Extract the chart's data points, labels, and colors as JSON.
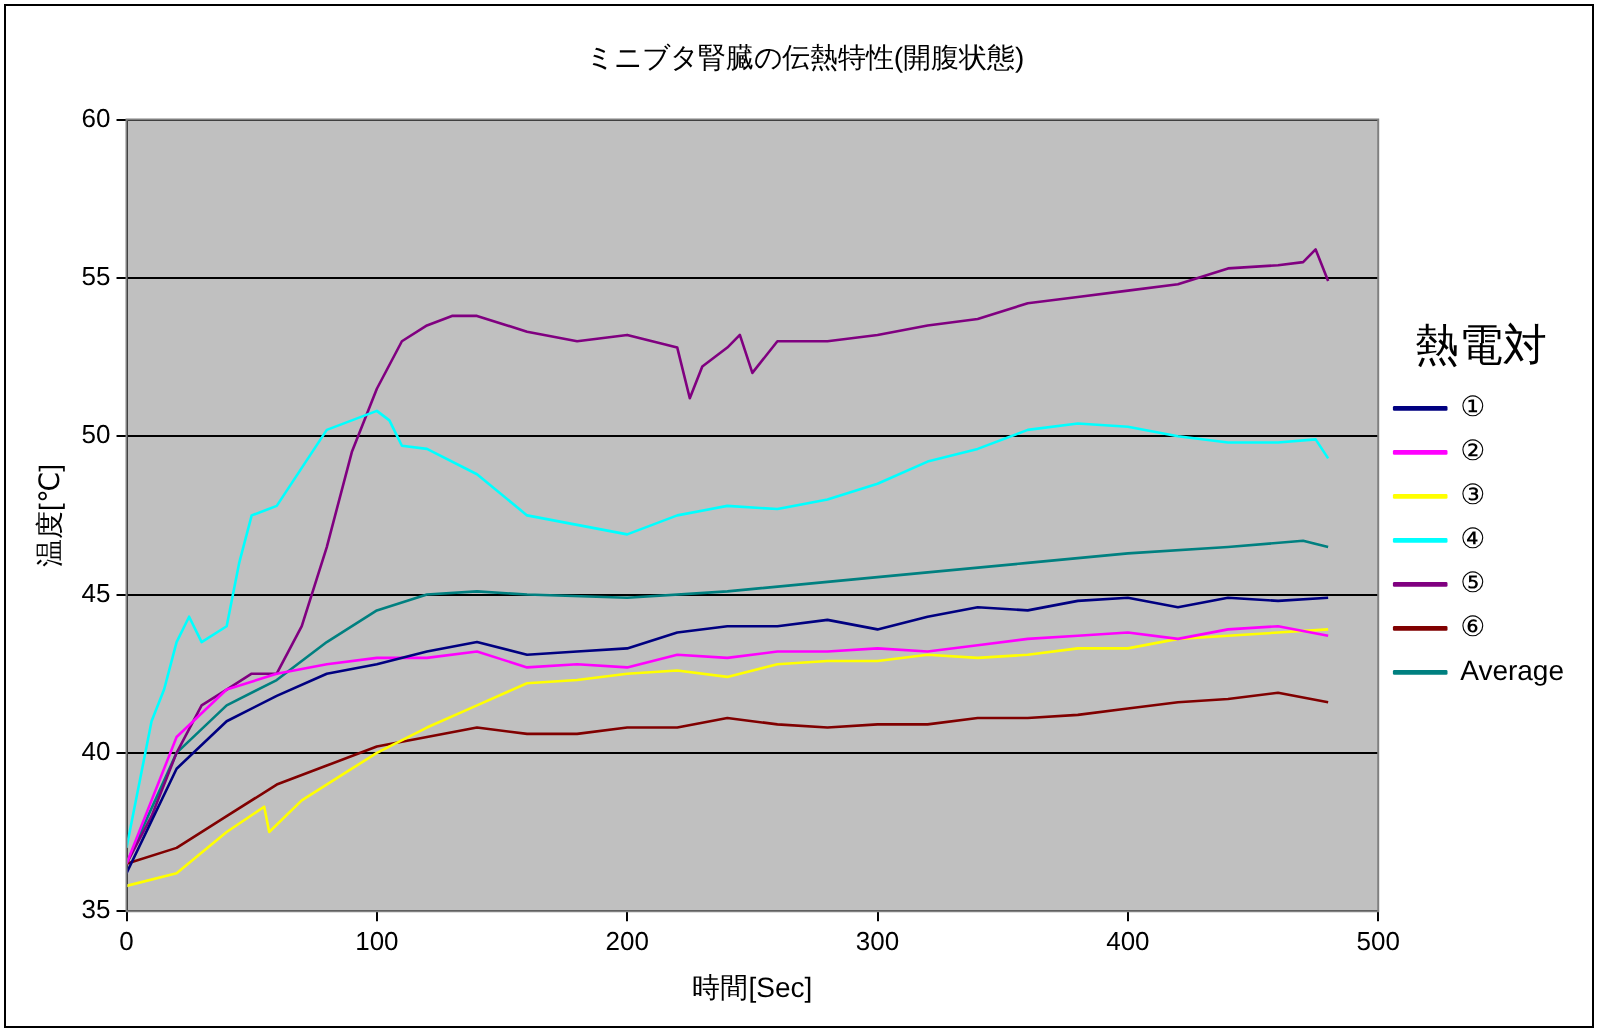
{
  "chart_data": {
    "type": "line",
    "title": "ミニブタ腎臓の伝熱特性(開腹状態)",
    "xlabel": "時間[Sec]",
    "ylabel": "温度[℃]",
    "legend_title": "熱電対",
    "legend": "right",
    "grid": "y",
    "marker": "none",
    "line_style": "solid",
    "xlim": [
      0,
      500
    ],
    "xticks": [
      0,
      100,
      200,
      300,
      400,
      500
    ],
    "ylim": [
      35,
      60
    ],
    "yticks": [
      35,
      40,
      45,
      50,
      55,
      60
    ],
    "series": [
      {
        "name": "①",
        "color": "#000080",
        "x": [
          0,
          20,
          40,
          60,
          80,
          100,
          120,
          140,
          160,
          180,
          200,
          220,
          240,
          260,
          280,
          300,
          320,
          340,
          360,
          380,
          400,
          420,
          440,
          460,
          480
        ],
        "values": [
          36.2,
          39.5,
          41,
          41.8,
          42.5,
          42.8,
          43.2,
          43.5,
          43.1,
          43.2,
          43.3,
          43.8,
          44,
          44,
          44.2,
          43.9,
          44.3,
          44.6,
          44.5,
          44.8,
          44.9,
          44.6,
          44.9,
          44.8,
          44.9
        ]
      },
      {
        "name": "②",
        "color": "#ff00ff",
        "x": [
          0,
          20,
          40,
          60,
          80,
          100,
          120,
          140,
          160,
          180,
          200,
          220,
          240,
          260,
          280,
          300,
          320,
          340,
          360,
          380,
          400,
          420,
          440,
          460,
          480
        ],
        "values": [
          36.5,
          40.5,
          42,
          42.5,
          42.8,
          43,
          43,
          43.2,
          42.7,
          42.8,
          42.7,
          43.1,
          43,
          43.2,
          43.2,
          43.3,
          43.2,
          43.4,
          43.6,
          43.7,
          43.8,
          43.6,
          43.9,
          44,
          43.7
        ]
      },
      {
        "name": "③",
        "color": "#ffff00",
        "x": [
          0,
          20,
          40,
          55,
          57,
          70,
          90,
          100,
          120,
          140,
          160,
          180,
          200,
          220,
          240,
          260,
          280,
          300,
          320,
          340,
          360,
          380,
          400,
          420,
          440,
          460,
          480
        ],
        "values": [
          35.8,
          36.2,
          37.5,
          38.3,
          37.5,
          38.5,
          39.5,
          40,
          40.8,
          41.5,
          42.2,
          42.3,
          42.5,
          42.6,
          42.4,
          42.8,
          42.9,
          42.9,
          43.1,
          43,
          43.1,
          43.3,
          43.3,
          43.6,
          43.7,
          43.8,
          43.9
        ]
      },
      {
        "name": "④",
        "color": "#00ffff",
        "x": [
          0,
          5,
          10,
          15,
          20,
          25,
          30,
          40,
          45,
          50,
          60,
          70,
          80,
          90,
          100,
          105,
          110,
          120,
          140,
          160,
          180,
          200,
          220,
          240,
          260,
          280,
          300,
          320,
          340,
          360,
          380,
          400,
          420,
          440,
          460,
          475,
          480
        ],
        "values": [
          37,
          39,
          41,
          42,
          43.5,
          44.3,
          43.5,
          44,
          46,
          47.5,
          47.8,
          49,
          50.2,
          50.5,
          50.8,
          50.5,
          49.7,
          49.6,
          48.8,
          47.5,
          47.2,
          46.9,
          47.5,
          47.8,
          47.7,
          48,
          48.5,
          49.2,
          49.6,
          50.2,
          50.4,
          50.3,
          50,
          49.8,
          49.8,
          49.9,
          49.3
        ]
      },
      {
        "name": "⑤",
        "color": "#800080",
        "x": [
          0,
          10,
          20,
          30,
          40,
          50,
          60,
          70,
          80,
          90,
          100,
          110,
          120,
          130,
          140,
          160,
          180,
          200,
          220,
          225,
          230,
          240,
          245,
          250,
          260,
          280,
          300,
          320,
          340,
          360,
          380,
          400,
          420,
          440,
          460,
          470,
          475,
          480
        ],
        "values": [
          36.5,
          38,
          40,
          41.5,
          42,
          42.5,
          42.5,
          44,
          46.5,
          49.5,
          51.5,
          53,
          53.5,
          53.8,
          53.8,
          53.3,
          53,
          53.2,
          52.8,
          51.2,
          52.2,
          52.8,
          53.2,
          52,
          53,
          53,
          53.2,
          53.5,
          53.7,
          54.2,
          54.4,
          54.6,
          54.8,
          55.3,
          55.4,
          55.5,
          55.9,
          54.9
        ]
      },
      {
        "name": "⑥",
        "color": "#800000",
        "x": [
          0,
          20,
          40,
          60,
          80,
          100,
          120,
          140,
          160,
          180,
          200,
          220,
          240,
          260,
          280,
          300,
          320,
          340,
          360,
          380,
          400,
          420,
          440,
          460,
          480
        ],
        "values": [
          36.5,
          37,
          38,
          39,
          39.6,
          40.2,
          40.5,
          40.8,
          40.6,
          40.6,
          40.8,
          40.8,
          41.1,
          40.9,
          40.8,
          40.9,
          40.9,
          41.1,
          41.1,
          41.2,
          41.4,
          41.6,
          41.7,
          41.9,
          41.6
        ]
      },
      {
        "name": "Average",
        "color": "#008080",
        "x": [
          0,
          20,
          40,
          60,
          80,
          100,
          120,
          140,
          160,
          200,
          240,
          280,
          320,
          360,
          400,
          440,
          470,
          480
        ],
        "values": [
          36.5,
          40,
          41.5,
          42.3,
          43.5,
          44.5,
          45,
          45.1,
          45,
          44.9,
          45.1,
          45.4,
          45.7,
          46,
          46.3,
          46.5,
          46.7,
          46.5
        ]
      }
    ]
  }
}
